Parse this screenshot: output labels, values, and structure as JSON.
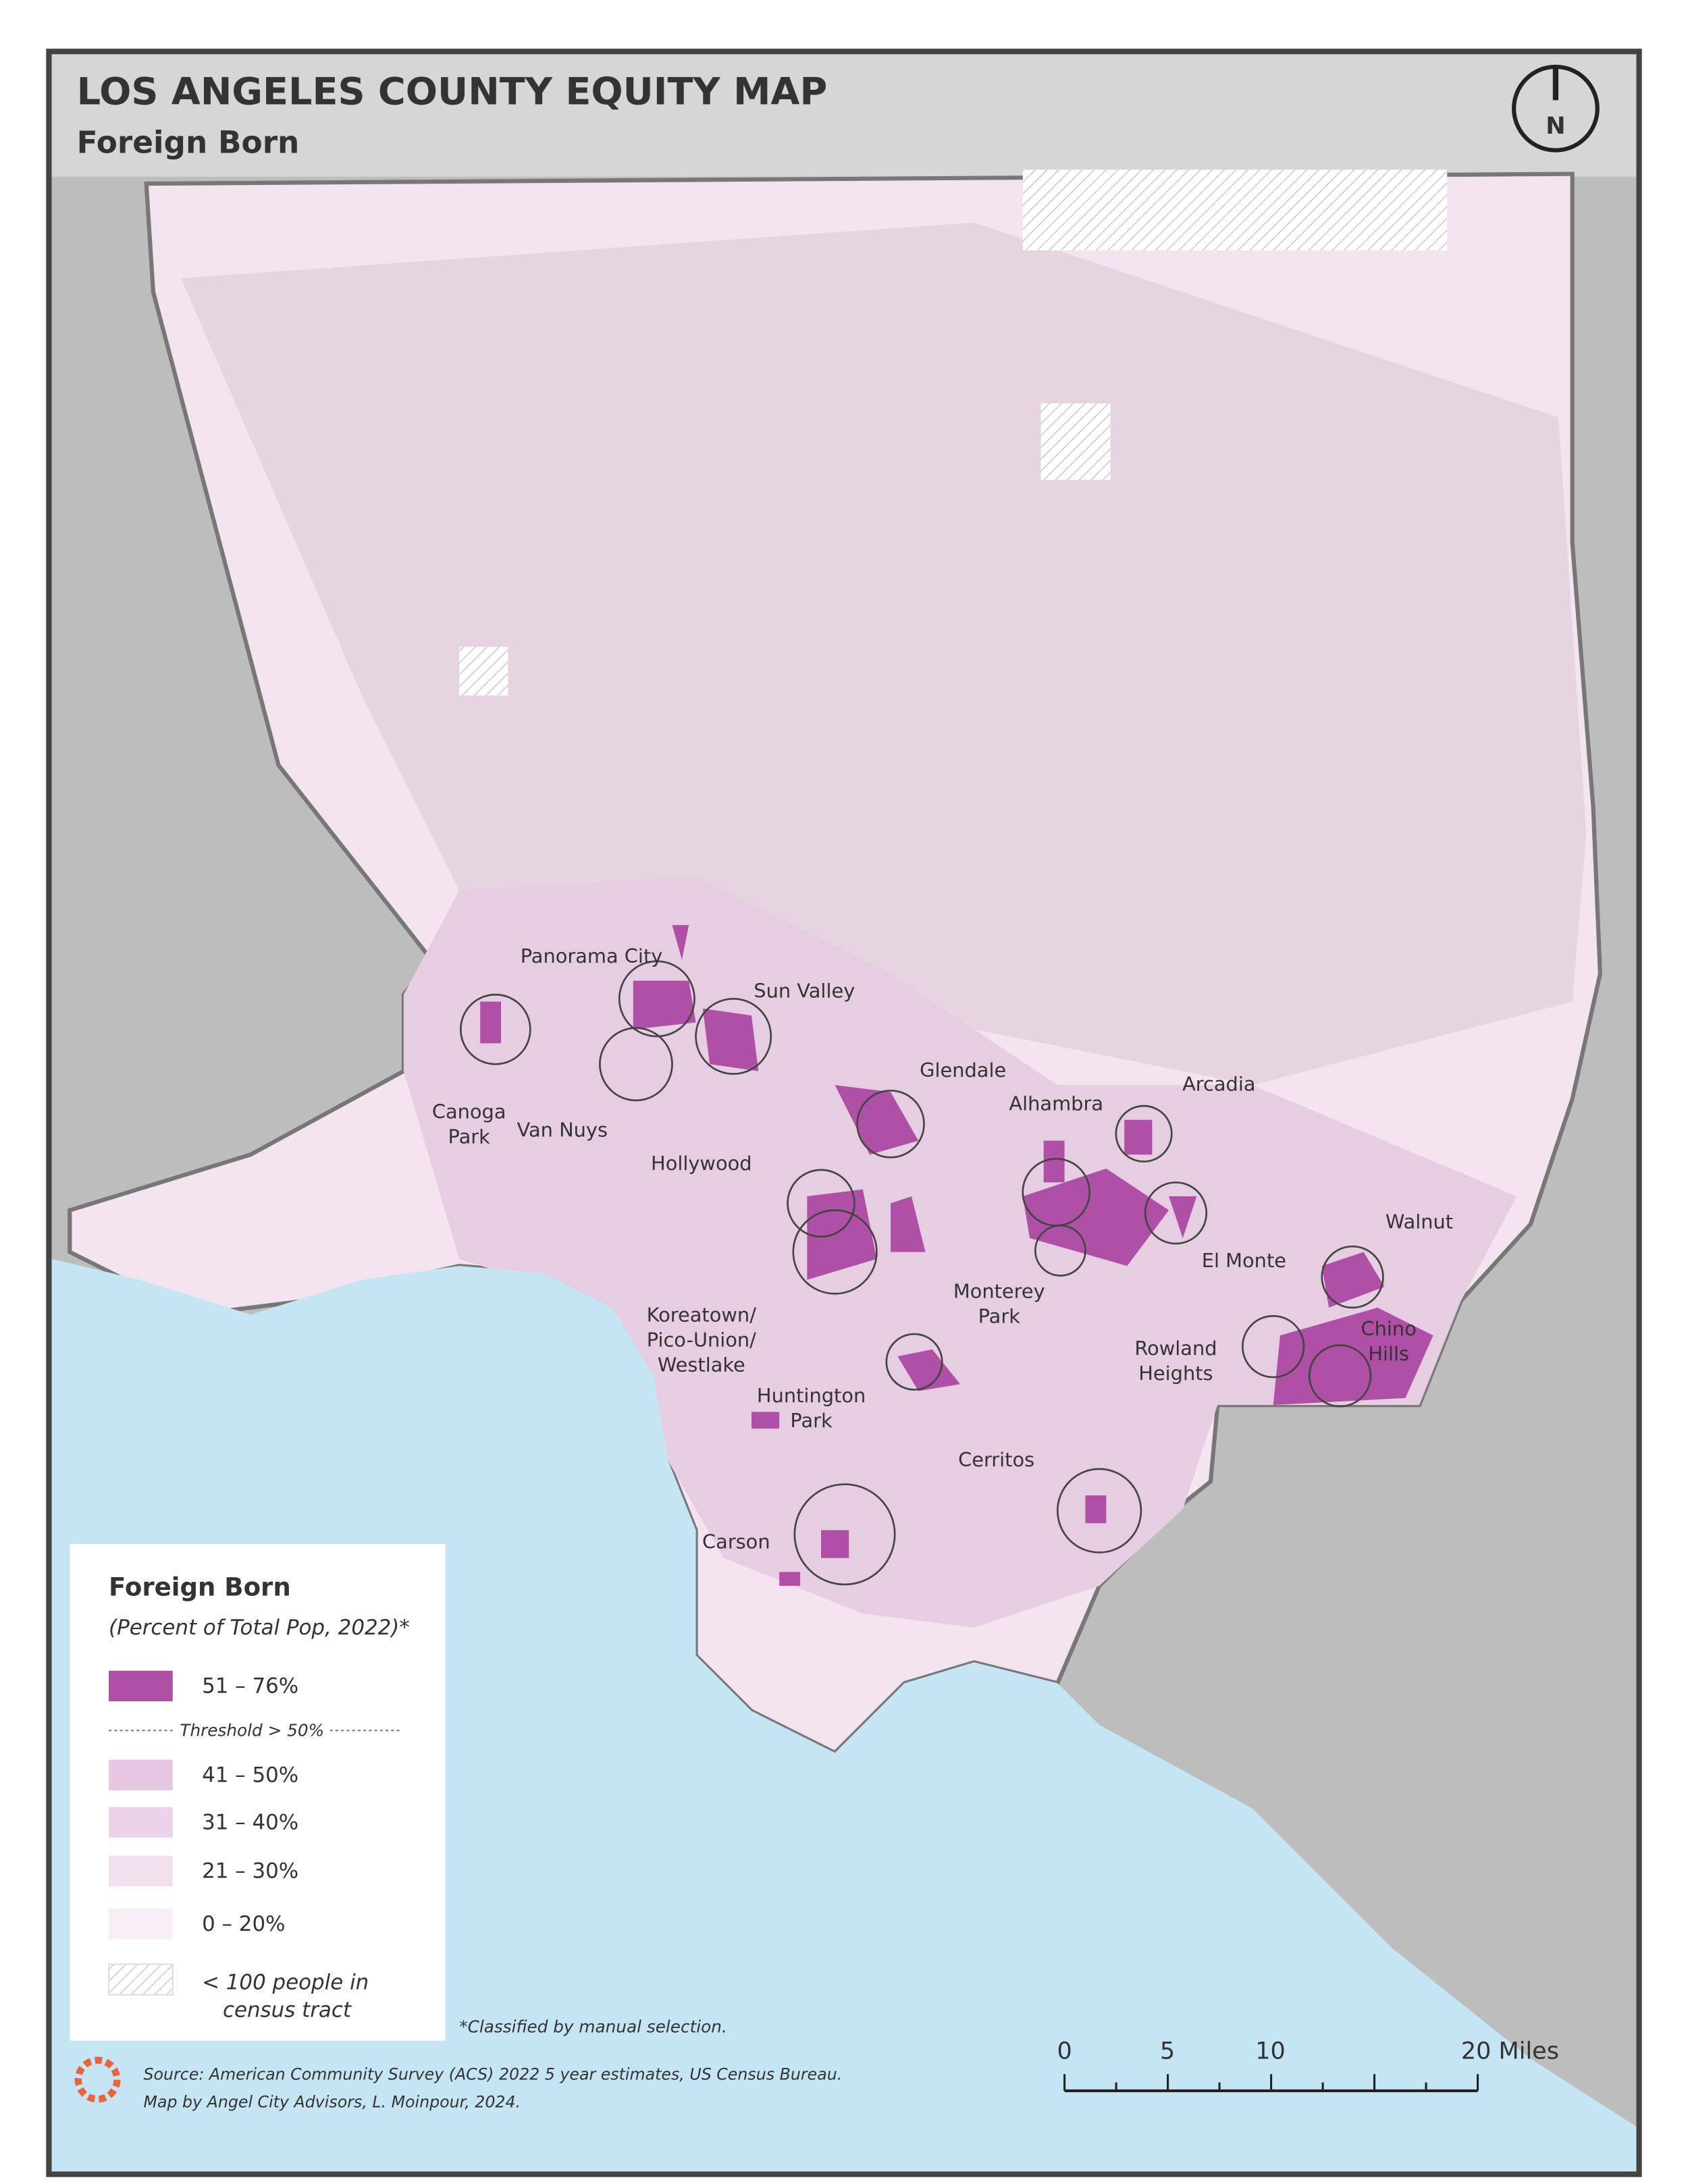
{
  "header": {
    "title": "LOS ANGELES COUNTY EQUITY MAP",
    "subtitle": "Foreign Born",
    "north": "N"
  },
  "places": [
    {
      "lines": [
        "Panorama City"
      ]
    },
    {
      "lines": [
        "Sun Valley"
      ]
    },
    {
      "lines": [
        "Canoga",
        "Park"
      ]
    },
    {
      "lines": [
        "Van Nuys"
      ]
    },
    {
      "lines": [
        "Glendale"
      ]
    },
    {
      "lines": [
        "Arcadia"
      ]
    },
    {
      "lines": [
        "Alhambra"
      ]
    },
    {
      "lines": [
        "Hollywood"
      ]
    },
    {
      "lines": [
        "El Monte"
      ]
    },
    {
      "lines": [
        "Walnut"
      ]
    },
    {
      "lines": [
        "Monterey",
        "Park"
      ]
    },
    {
      "lines": [
        "Koreatown/",
        "Pico-Union/",
        "Westlake"
      ]
    },
    {
      "lines": [
        "Chino",
        "Hills"
      ]
    },
    {
      "lines": [
        "Rowland",
        "Heights"
      ]
    },
    {
      "lines": [
        "Huntington",
        "Park"
      ]
    },
    {
      "lines": [
        "Cerritos"
      ]
    },
    {
      "lines": [
        "Carson"
      ]
    }
  ],
  "legend": {
    "title": "Foreign Born",
    "subtitle": "(Percent of Total Pop, 2022)*",
    "items": [
      {
        "label": "51 – 76%",
        "color": "#b04fa6"
      },
      {
        "label": "41 – 50%",
        "color": "#e6c6e2"
      },
      {
        "label": "31 – 40%",
        "color": "#ecd3e9"
      },
      {
        "label": "21 – 30%",
        "color": "#f3e0ef"
      },
      {
        "label": "0 – 20%",
        "color": "#f9eef6"
      }
    ],
    "threshold": "Threshold > 50%",
    "nodata": [
      "< 100 people in",
      "census tract"
    ]
  },
  "note": "*Classified by manual selection.",
  "source": [
    "Source: American Community Survey (ACS) 2022 5 year estimates, US Census Bureau.",
    "Map by Angel City Advisors, L. Moinpour, 2024."
  ],
  "scale": [
    "0",
    "5",
    "10",
    "20 Miles"
  ]
}
